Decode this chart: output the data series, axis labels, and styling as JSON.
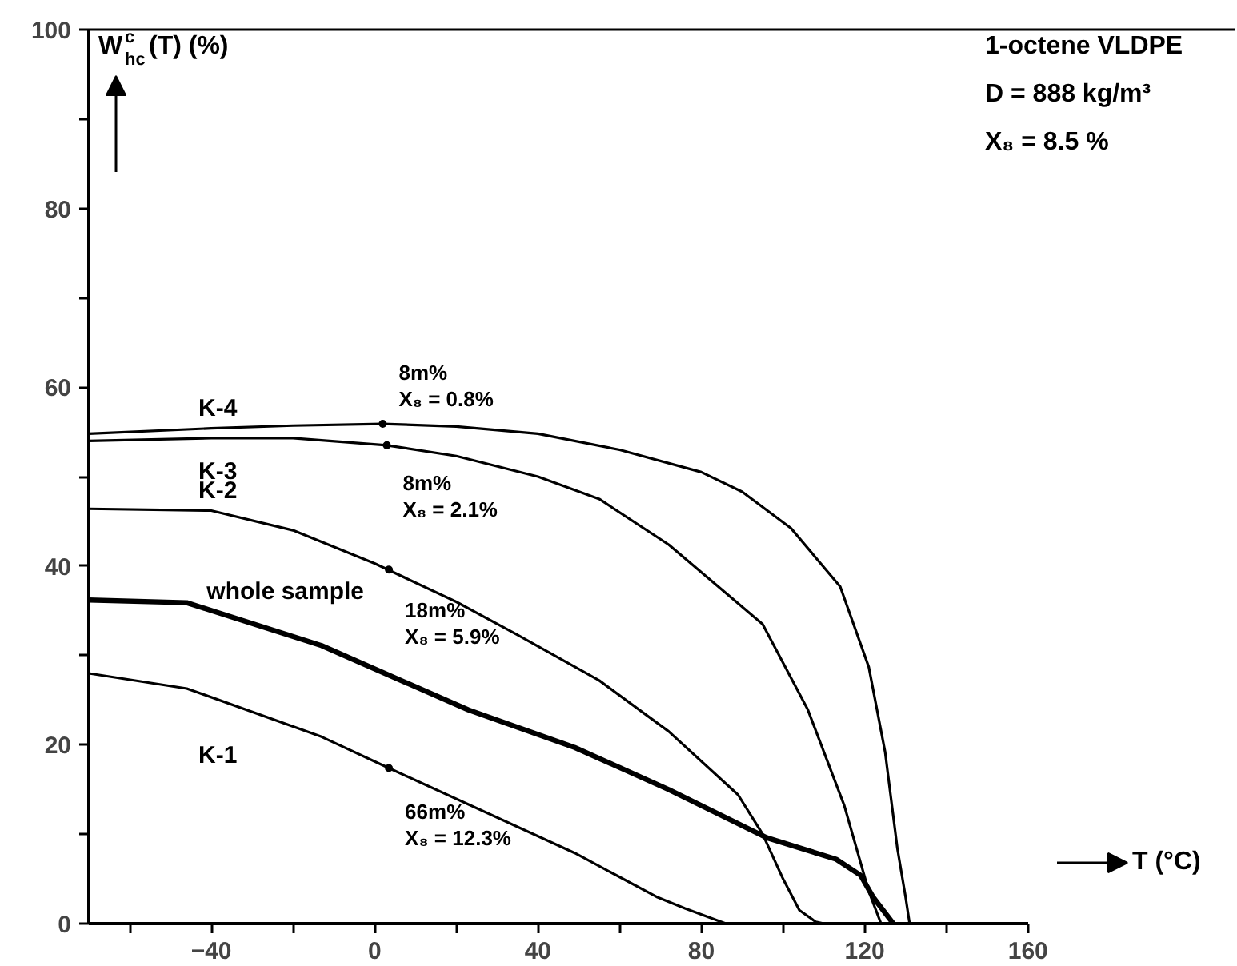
{
  "chart_data": {
    "type": "line",
    "xlabel": "T (°C)",
    "ylabel": "W$^{c}$$_{hc}$(T) (%)",
    "xlim": [
      -70,
      160
    ],
    "ylim": [
      0,
      100
    ],
    "xticks": [
      {
        "value": -60,
        "label": null
      },
      -40,
      {
        "value": -20,
        "label": null
      },
      0,
      {
        "value": 20,
        "label": null
      },
      40,
      {
        "value": 60,
        "label": null
      },
      80,
      {
        "value": 100,
        "label": null
      },
      120,
      {
        "value": 140,
        "label": null
      },
      160
    ],
    "yticks": [
      0,
      {
        "value": 10,
        "label": null
      },
      20,
      {
        "value": 30,
        "label": null
      },
      40,
      {
        "value": 50,
        "label": null
      },
      60,
      {
        "value": 70,
        "label": null
      },
      80,
      {
        "value": 90,
        "label": null
      },
      100
    ],
    "grid": false,
    "line_style": "solid",
    "marker": "none",
    "series": [
      {
        "name": "K-4",
        "color": "#000000",
        "x": [
          -70,
          -40,
          -20,
          2,
          20,
          40,
          60,
          80,
          90,
          102,
          114,
          121,
          125,
          128,
          130,
          131
        ],
        "values": [
          54.8,
          55.4,
          55.7,
          55.9,
          55.6,
          54.8,
          53.0,
          50.5,
          48.3,
          44.2,
          37.7,
          28.7,
          19.2,
          8.4,
          3.0,
          0
        ]
      },
      {
        "name": "K-3",
        "color": "#000000",
        "x": [
          -70,
          -40,
          -20,
          3,
          20,
          40,
          55,
          72,
          95,
          106,
          115,
          121,
          124
        ],
        "values": [
          54.0,
          54.3,
          54.3,
          53.5,
          52.3,
          50.0,
          47.5,
          42.4,
          33.5,
          24.0,
          13.2,
          3.6,
          0
        ]
      },
      {
        "name": "K-2",
        "color": "#000000",
        "x": [
          -70,
          -40,
          -20,
          0,
          20,
          35,
          55,
          72,
          89,
          95,
          100,
          104,
          108,
          110
        ],
        "values": [
          46.4,
          46.2,
          44.0,
          40.3,
          36.0,
          32.3,
          27.2,
          21.5,
          14.4,
          10.0,
          5.0,
          1.5,
          0.2,
          0
        ]
      },
      {
        "name": "whole sample",
        "color": "#000000",
        "x": [
          -70,
          -46,
          -13,
          23,
          49,
          72,
          96,
          113,
          119,
          122,
          127
        ],
        "values": [
          36.2,
          35.9,
          31.1,
          23.9,
          19.7,
          15.0,
          9.6,
          7.2,
          5.4,
          3.0,
          0
        ]
      },
      {
        "name": "K-1",
        "color": "#000000",
        "x": [
          -70,
          -46,
          -13,
          3.5,
          49,
          69,
          76,
          86
        ],
        "values": [
          28.0,
          26.3,
          20.9,
          17.4,
          7.9,
          3.0,
          1.7,
          0
        ]
      }
    ],
    "annotations": [
      {
        "text": "8m%\nX₈ = 0.8%",
        "x": 2,
        "y": 55.9
      },
      {
        "text": "8m%\nX₈ = 2.1%",
        "x": 3,
        "y": 53.5
      },
      {
        "text": "18m%\nX₈ = 5.9%",
        "x": 3.5,
        "y": 39.6
      },
      {
        "text": "66m%\nX₈ = 12.3%",
        "x": 3.5,
        "y": 17.4
      },
      "1-octene VLDPE",
      "D  =  888 kg/m³",
      "X₈  =  8.5  %"
    ]
  }
}
